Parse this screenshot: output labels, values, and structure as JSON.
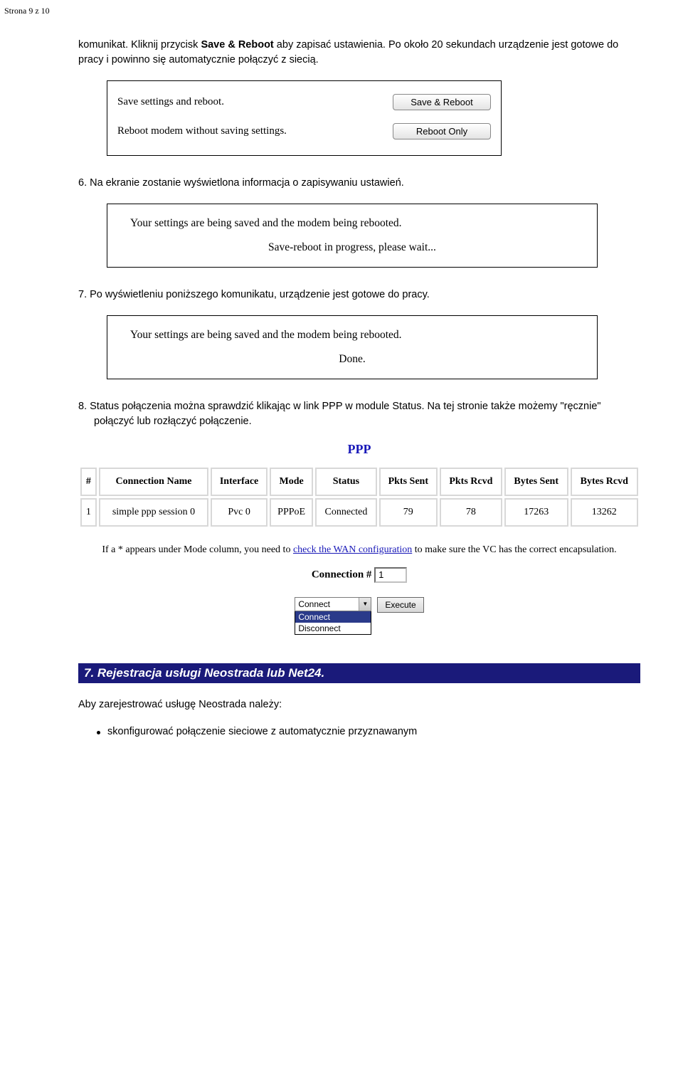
{
  "page_header": "Strona 9 z 10",
  "intro": {
    "pre": "komunikat. Kliknij przycisk ",
    "bold": "Save & Reboot",
    "post": " aby zapisać ustawienia. Po około 20 sekundach urządzenie jest gotowe do pracy i powinno się automatycznie połączyć z siecią."
  },
  "reboot_box": {
    "row1_label": "Save settings and reboot.",
    "row1_button": "Save & Reboot",
    "row2_label": "Reboot modem without saving settings.",
    "row2_button": "Reboot Only"
  },
  "step6": "6.  Na ekranie zostanie wyświetlona informacja o zapisywaniu ustawień.",
  "msg1": {
    "line1": "Your settings are being saved and the modem being rebooted.",
    "line2": "Save-reboot in progress, please wait..."
  },
  "step7": "7.  Po wyświetleniu poniższego komunikatu, urządzenie jest gotowe do pracy.",
  "msg2": {
    "line1": "Your settings are being saved and the modem being rebooted.",
    "line2": "Done."
  },
  "step8": "8.  Status połączenia można sprawdzić klikając w link PPP w module Status. Na tej stronie także możemy \"ręcznie\" połączyć lub rozłączyć połączenie.",
  "ppp": {
    "title": "PPP",
    "headers": [
      "#",
      "Connection Name",
      "Interface",
      "Mode",
      "Status",
      "Pkts Sent",
      "Pkts Rcvd",
      "Bytes Sent",
      "Bytes Rcvd"
    ],
    "row": [
      "1",
      "simple ppp session 0",
      "Pvc 0",
      "PPPoE",
      "Connected",
      "79",
      "78",
      "17263",
      "13262"
    ],
    "note_pre": "If a * appears under Mode column, you need to ",
    "note_link": "check the WAN configuration",
    "note_post": " to make sure the VC has the correct encapsulation.",
    "conn_label": "Connection #",
    "conn_value": "1",
    "select_current": "Connect",
    "select_opts": {
      "opt1": "Connect",
      "opt2": "Disconnect"
    },
    "execute": "Execute"
  },
  "section7": {
    "title": "7. Rejestracja usługi Neostrada lub Net24.",
    "lead": "Aby zarejestrować usługę Neostrada należy:",
    "bullet1": "skonfigurować połączenie sieciowe z automatycznie przyznawanym"
  },
  "colors": {
    "section_bg": "#1a1a7a",
    "section_fg": "#ffffff",
    "link_color": "#1818b8",
    "select_hl": "#2a3a8a"
  }
}
